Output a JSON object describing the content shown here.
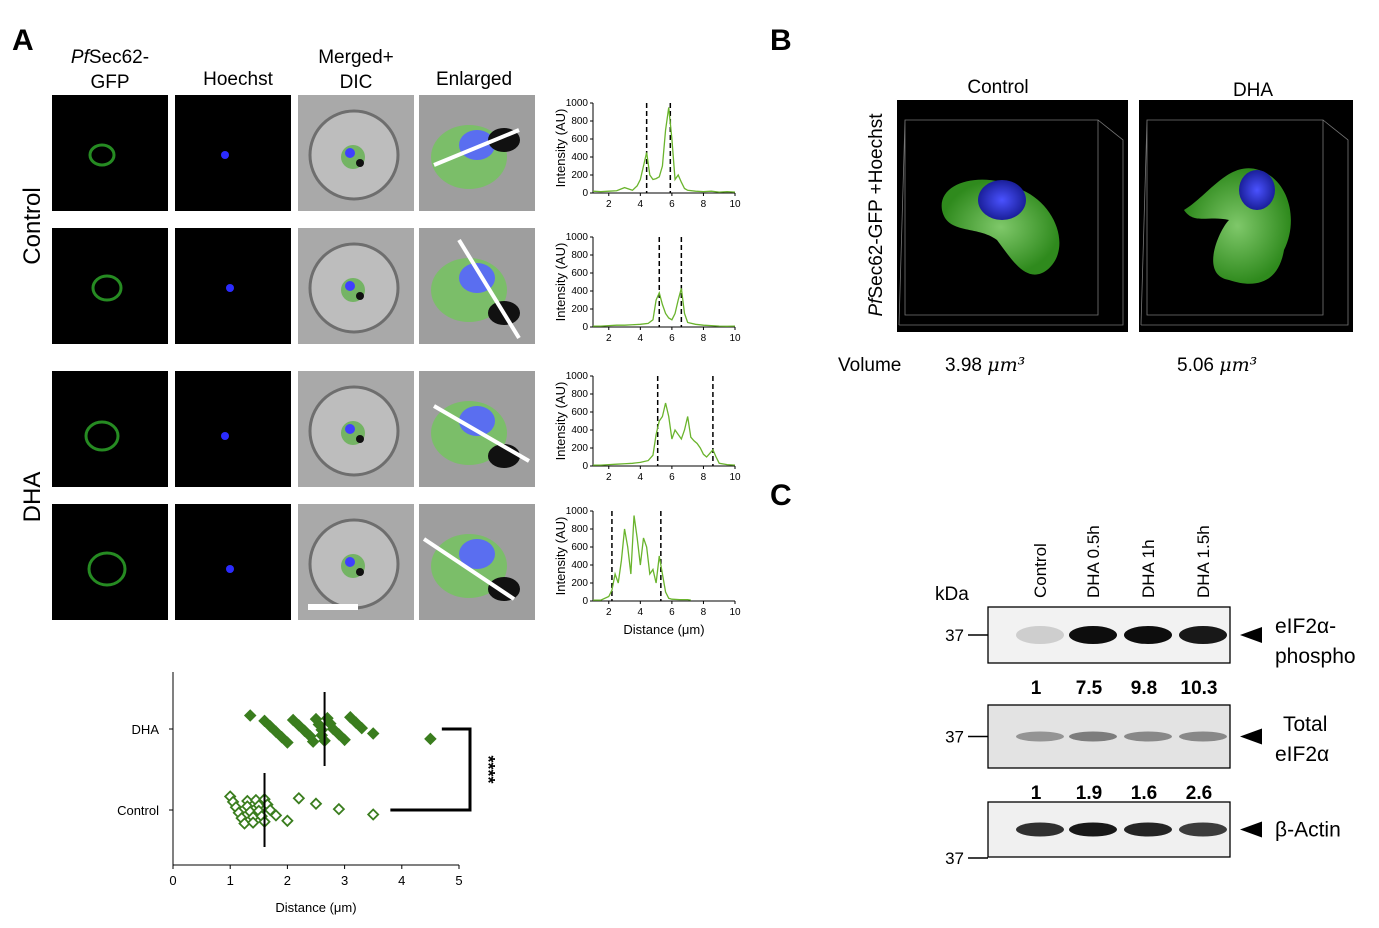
{
  "panels": {
    "a": "A",
    "b": "B",
    "c": "C"
  },
  "panel_a": {
    "gfp_header": {
      "italic": "Pf",
      "text": "Sec62-",
      "line2": "GFP"
    },
    "columns": [
      [
        "Hoechst"
      ],
      [
        "Merged+",
        "DIC"
      ],
      [
        "Enlarged"
      ]
    ],
    "rows": [
      "Control",
      "DHA"
    ]
  },
  "chart_data": [
    {
      "type": "line",
      "ylabel": "Intensity (AU)",
      "color": "#6ab42d",
      "x": [
        1,
        1.5,
        2,
        2.5,
        3,
        3.5,
        3.8,
        4.0,
        4.2,
        4.4,
        4.6,
        4.8,
        5.0,
        5.2,
        5.4,
        5.6,
        5.8,
        6.0,
        6.2,
        6.4,
        6.6,
        6.8,
        7.0,
        7.5,
        8,
        8.5,
        9,
        9.5,
        10
      ],
      "values": [
        20,
        15,
        20,
        25,
        60,
        30,
        80,
        150,
        300,
        450,
        200,
        150,
        160,
        180,
        300,
        700,
        950,
        600,
        150,
        200,
        120,
        50,
        30,
        20,
        15,
        20,
        10,
        15,
        10
      ],
      "markers": [
        4.4,
        5.9
      ],
      "xlim": [
        1,
        10
      ],
      "xticks": [
        2,
        4,
        6,
        8,
        10
      ],
      "ylim": [
        0,
        1000
      ],
      "yticks": [
        0,
        200,
        400,
        600,
        800,
        1000
      ]
    },
    {
      "type": "line",
      "ylabel": "Intensity (AU)",
      "color": "#6ab42d",
      "x": [
        1,
        1.5,
        2,
        2.5,
        3,
        3.5,
        4,
        4.5,
        4.8,
        5.0,
        5.2,
        5.4,
        5.6,
        5.8,
        6.0,
        6.2,
        6.4,
        6.6,
        6.8,
        7.0,
        7.5,
        8,
        8.5,
        9,
        9.5,
        10
      ],
      "values": [
        10,
        10,
        15,
        20,
        20,
        25,
        30,
        40,
        80,
        300,
        380,
        250,
        150,
        100,
        80,
        150,
        300,
        430,
        150,
        50,
        30,
        20,
        15,
        10,
        8,
        10
      ],
      "markers": [
        5.2,
        6.6
      ],
      "xlim": [
        1,
        10
      ],
      "xticks": [
        2,
        4,
        6,
        8,
        10
      ],
      "ylim": [
        0,
        1000
      ],
      "yticks": [
        0,
        200,
        400,
        600,
        800,
        1000
      ]
    },
    {
      "type": "line",
      "ylabel": "Intensity (AU)",
      "color": "#6ab42d",
      "x": [
        1,
        1.5,
        2,
        2.5,
        3,
        3.5,
        4,
        4.5,
        4.8,
        5.0,
        5.2,
        5.4,
        5.6,
        5.8,
        6.0,
        6.2,
        6.4,
        6.6,
        6.8,
        7.0,
        7.2,
        7.4,
        7.6,
        7.8,
        8.0,
        8.2,
        8.4,
        8.6,
        8.8,
        9,
        9.5,
        10
      ],
      "values": [
        10,
        10,
        15,
        20,
        25,
        30,
        40,
        60,
        120,
        350,
        500,
        550,
        700,
        550,
        300,
        400,
        350,
        300,
        400,
        550,
        320,
        280,
        250,
        200,
        130,
        100,
        140,
        180,
        100,
        30,
        15,
        10
      ],
      "markers": [
        5.1,
        8.6
      ],
      "xlim": [
        1,
        10
      ],
      "xticks": [
        2,
        4,
        6,
        8,
        10
      ],
      "ylim": [
        0,
        1000
      ],
      "yticks": [
        0,
        200,
        400,
        600,
        800,
        1000
      ]
    },
    {
      "type": "line",
      "ylabel": "Intensity (AU)",
      "xlabel": "Distance (μm)",
      "color": "#6ab42d",
      "x": [
        1,
        1.5,
        2,
        2.2,
        2.4,
        2.6,
        2.8,
        3.0,
        3.2,
        3.4,
        3.6,
        3.8,
        4.0,
        4.2,
        4.4,
        4.6,
        4.8,
        5.0,
        5.2,
        5.4,
        5.6,
        5.8,
        6,
        6.5,
        7,
        7.2
      ],
      "values": [
        10,
        10,
        50,
        120,
        300,
        200,
        450,
        800,
        600,
        300,
        950,
        700,
        400,
        700,
        600,
        300,
        350,
        200,
        500,
        300,
        100,
        30,
        20,
        15,
        15,
        10
      ],
      "markers": [
        2.2,
        5.3
      ],
      "xlim": [
        1,
        10
      ],
      "xticks": [
        2,
        4,
        6,
        8,
        10
      ],
      "ylim": [
        0,
        1000
      ],
      "yticks": [
        0,
        200,
        400,
        600,
        800,
        1000
      ]
    },
    {
      "type": "dot",
      "xlabel": "Distance (μm)",
      "categories": [
        "DHA",
        "Control"
      ],
      "groups": [
        {
          "color": "#3a7d1e",
          "filled": true,
          "mean": 2.65,
          "values": [
            1.35,
            1.6,
            1.7,
            1.8,
            1.9,
            2.0,
            2.1,
            2.2,
            2.3,
            2.4,
            2.45,
            2.5,
            2.55,
            2.6,
            2.6,
            2.65,
            2.7,
            2.75,
            2.8,
            2.9,
            3.0,
            3.1,
            3.2,
            3.3,
            3.5,
            4.5
          ]
        },
        {
          "color": "#3a7d1e",
          "filled": false,
          "mean": 1.6,
          "values": [
            1.0,
            1.05,
            1.1,
            1.15,
            1.2,
            1.25,
            1.3,
            1.3,
            1.35,
            1.4,
            1.4,
            1.45,
            1.5,
            1.5,
            1.55,
            1.6,
            1.6,
            1.65,
            1.7,
            1.8,
            2.0,
            2.2,
            2.5,
            2.9,
            3.5
          ]
        }
      ],
      "significance": "****",
      "xlim": [
        0,
        5
      ],
      "xticks": [
        0,
        1,
        2,
        3,
        4,
        5
      ]
    }
  ],
  "panel_b": {
    "conditions": [
      "Control",
      "DHA"
    ],
    "ylabel": {
      "italic": "Pf",
      "text": "Sec62-GFP +Hoechst"
    },
    "volume_label": "Volume",
    "volumes": [
      3.98,
      5.06
    ],
    "unit": "μm³"
  },
  "panel_c": {
    "lanes": [
      "Control",
      "DHA 0.5h",
      "DHA 1h",
      "DHA 1.5h"
    ],
    "kda": "kDa",
    "marker": "37",
    "blots": [
      {
        "label": [
          "eIF2α-",
          "phospho"
        ],
        "quant": [
          1,
          7.5,
          9.8,
          10.3
        ]
      },
      {
        "label": [
          "Total",
          "eIF2α"
        ],
        "quant": [
          1,
          1.9,
          1.6,
          2.6
        ]
      },
      {
        "label": [
          "β-Actin"
        ]
      }
    ]
  }
}
